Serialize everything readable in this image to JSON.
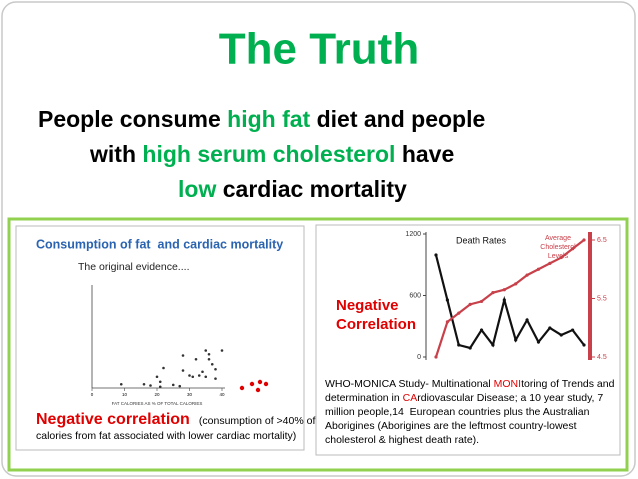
{
  "title": "The Truth",
  "highlight_color": "#00b050",
  "body": [
    [
      {
        "text": "People consume "
      },
      {
        "text": "high fat",
        "highlight": true
      },
      {
        "text": " diet and people"
      }
    ],
    [
      {
        "text": "with "
      },
      {
        "text": "high serum cholesterol",
        "highlight": true
      },
      {
        "text": " have"
      }
    ],
    [
      {
        "text": "low",
        "highlight": true
      },
      {
        "text": " cardiac mortality"
      }
    ]
  ],
  "left_panel": {
    "title": "Consumption of fat  and cardiac mortality",
    "subtitle": "The original evidence....",
    "scatter": {
      "x_label": "FAT CALORIES AS % OF TOTAL CALORIES",
      "xlim": [
        0,
        40
      ],
      "ylim": [
        0,
        800
      ],
      "xticks": [
        0,
        10,
        20,
        30,
        40
      ],
      "x": [
        9,
        16,
        18,
        21,
        20,
        22,
        21,
        25,
        28,
        28,
        30,
        31,
        32,
        33,
        34,
        35,
        36,
        37,
        38,
        36,
        27,
        38,
        35,
        40
      ],
      "y": [
        30,
        30,
        20,
        50,
        90,
        160,
        10,
        25,
        260,
        140,
        100,
        90,
        230,
        100,
        130,
        90,
        270,
        190,
        150,
        230,
        15,
        75,
        300,
        300
      ]
    },
    "note": {
      "label": "Negative correlation",
      "lines": [
        " (consumption of >40% of",
        "calories from fat associated with lower cardiac mortality)"
      ]
    }
  },
  "right_panel": {
    "highlight_color": "#e00000",
    "label_lines": [
      "Negative",
      "Correlation"
    ],
    "chart": {
      "type": "line",
      "ylim": [
        0,
        1200
      ],
      "yticks": [
        0,
        600,
        1200
      ],
      "y2lim": [
        4.5,
        6.5
      ],
      "y2ticks": [
        4.5,
        5.5,
        6.5
      ],
      "series": [
        {
          "name": "Death Rates",
          "color": "#111111",
          "values": [
            995,
            556,
            117,
            88,
            263,
            117,
            556,
            166,
            361,
            146,
            283,
            215,
            263,
            117
          ]
        },
        {
          "name_lines": [
            "Average",
            "Cholesterol",
            "Levels"
          ],
          "color": "#c8404a",
          "axis": "y2",
          "values": [
            4.5,
            5.1,
            5.25,
            5.4,
            5.45,
            5.6,
            5.65,
            5.75,
            5.9,
            6.0,
            6.1,
            6.2,
            6.35,
            6.5
          ]
        }
      ]
    },
    "text": [
      [
        {
          "text": "WHO-MONICA Study- Multinational "
        },
        {
          "text": "MONI",
          "highlight": true
        },
        {
          "text": "toring of Trends and"
        }
      ],
      [
        {
          "text": "determination in "
        },
        {
          "text": "CA",
          "highlight": true
        },
        {
          "text": "rdiovascular Disease; a 10 year study, 7"
        }
      ],
      [
        {
          "text": "million people,14  European countries plus the Australian"
        }
      ],
      [
        {
          "text": "Aborigines (Aborigines are the leftmost country-lowest"
        }
      ],
      [
        {
          "text": "cholesterol & highest death rate)."
        }
      ]
    ]
  }
}
